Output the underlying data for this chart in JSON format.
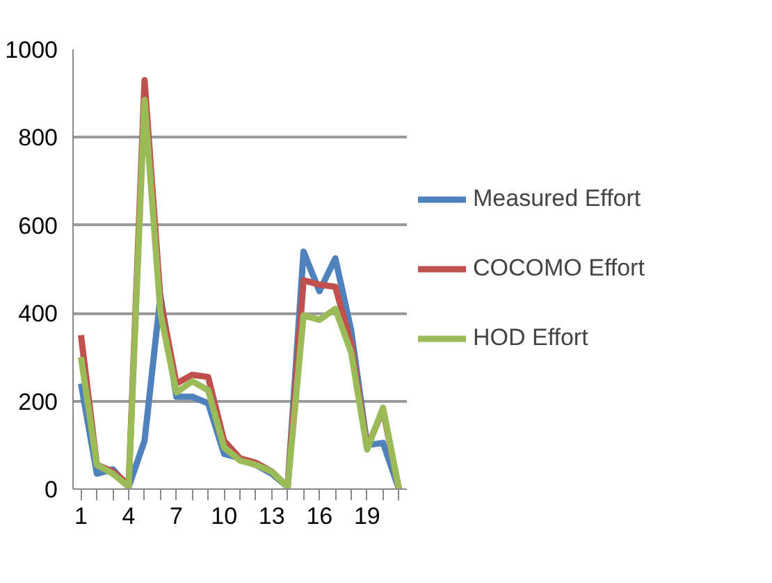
{
  "chart_data": {
    "type": "line",
    "categories": [
      "1",
      null,
      null,
      "4",
      null,
      null,
      "7",
      null,
      null,
      "10",
      null,
      null,
      "13",
      null,
      null,
      "16",
      null,
      null,
      "19",
      null,
      null
    ],
    "series": [
      {
        "name": "Measured Effort",
        "color": "#4f81bd",
        "values": [
          240,
          35,
          45,
          5,
          110,
          440,
          210,
          210,
          195,
          80,
          70,
          55,
          35,
          5,
          540,
          450,
          525,
          360,
          100,
          105,
          0
        ]
      },
      {
        "name": "COCOMO Effort",
        "color": "#c0504d",
        "values": [
          350,
          55,
          40,
          10,
          930,
          430,
          240,
          260,
          255,
          110,
          70,
          60,
          40,
          5,
          475,
          465,
          460,
          330,
          95,
          180,
          0
        ]
      },
      {
        "name": "HOD Effort",
        "color": "#9bbb59",
        "values": [
          300,
          55,
          35,
          5,
          885,
          400,
          220,
          245,
          225,
          95,
          65,
          55,
          40,
          5,
          395,
          385,
          410,
          310,
          90,
          185,
          0
        ]
      }
    ],
    "ylim": [
      0,
      1000
    ],
    "yticks": [
      0,
      200,
      400,
      600,
      800,
      1000
    ],
    "grid": "y",
    "legend": "right",
    "marker": "none",
    "line_style": "solid"
  }
}
